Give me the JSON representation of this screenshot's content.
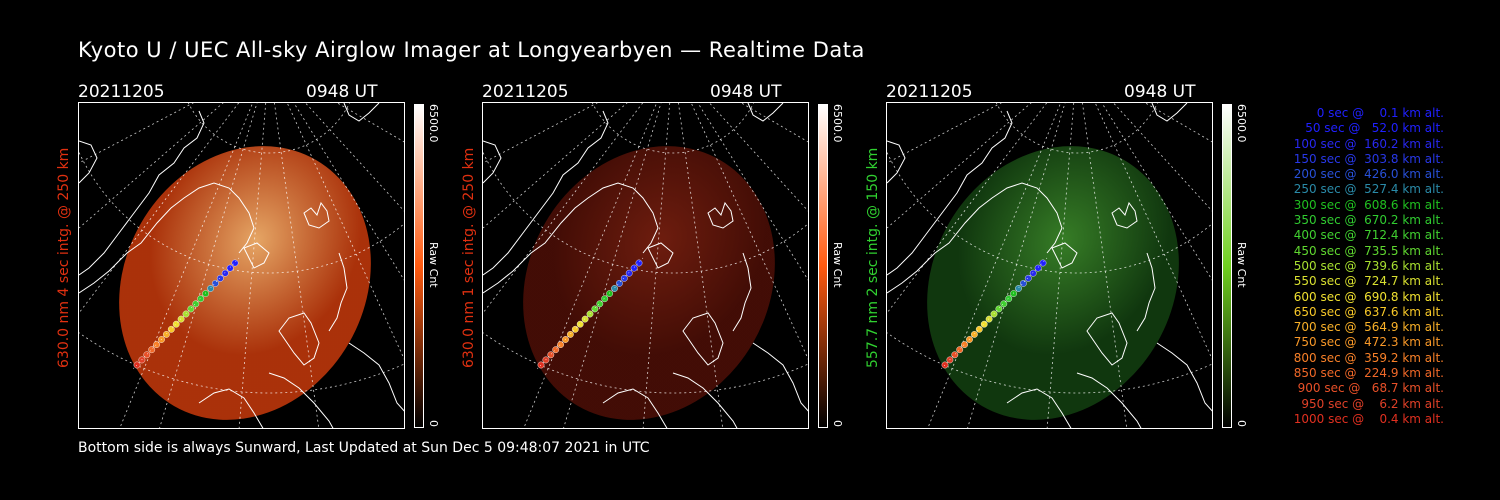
{
  "title": "Kyoto U / UEC All-sky Airglow Imager at Longyearbyen — Realtime Data",
  "footer": "Bottom side is always Sunward, Last Updated at Sun Dec  5 09:48:07 2021 in UTC",
  "panels": [
    {
      "date": "20211205",
      "time": "0948 UT",
      "ylabel": "630.0 nm 4 sec intg. @ 250 km",
      "label_color": "#e03010",
      "cbar_max": "6500.0",
      "cbar_min": "0",
      "cbar_unit": "Raw Cnt",
      "cbar_hi": "#ffffff",
      "cbar_mid": "#ff5a10",
      "cbar_lo": "#000000",
      "fill_color": "#c83a0c",
      "fill_opacity": 0.85,
      "glow": "#ffb870"
    },
    {
      "date": "20211205",
      "time": "0948 UT",
      "ylabel": "630.0 nm 1 sec intg. @ 250 km",
      "label_color": "#e03010",
      "cbar_max": "6500.0",
      "cbar_min": "0",
      "cbar_unit": "Raw Cnt",
      "cbar_hi": "#ffffff",
      "cbar_mid": "#ff5a10",
      "cbar_lo": "#000000",
      "fill_color": "#4a0e06",
      "fill_opacity": 0.9,
      "glow": "#7a2010"
    },
    {
      "date": "20211205",
      "time": "0948 UT",
      "ylabel": "557.7 nm 2 sec intg. @ 150 km",
      "label_color": "#30d030",
      "cbar_max": "6500.0",
      "cbar_min": "0",
      "cbar_unit": "Raw Cnt",
      "cbar_hi": "#ffffff",
      "cbar_mid": "#70d020",
      "cbar_lo": "#000000",
      "fill_color": "#123d10",
      "fill_opacity": 0.9,
      "glow": "#3c8a2a"
    }
  ],
  "legend": [
    {
      "text": "0 sec @    0.1 km alt.",
      "color": "#2020ff"
    },
    {
      "text": "50 sec @   52.0 km alt.",
      "color": "#2020ff"
    },
    {
      "text": "100 sec @  160.2 km alt.",
      "color": "#2828f0"
    },
    {
      "text": "150 sec @  303.8 km alt.",
      "color": "#2838e8"
    },
    {
      "text": "200 sec @  426.0 km alt.",
      "color": "#2850d8"
    },
    {
      "text": "250 sec @  527.4 km alt.",
      "color": "#2a8aa8"
    },
    {
      "text": "300 sec @  608.6 km alt.",
      "color": "#20c020"
    },
    {
      "text": "350 sec @  670.2 km alt.",
      "color": "#30cc30"
    },
    {
      "text": "400 sec @  712.4 km alt.",
      "color": "#40d030"
    },
    {
      "text": "450 sec @  735.5 km alt.",
      "color": "#60d830"
    },
    {
      "text": "500 sec @  739.6 km alt.",
      "color": "#a8e030"
    },
    {
      "text": "550 sec @  724.7 km alt.",
      "color": "#d8e030"
    },
    {
      "text": "600 sec @  690.8 km alt.",
      "color": "#f0e030"
    },
    {
      "text": "650 sec @  637.6 km alt.",
      "color": "#f8c828"
    },
    {
      "text": "700 sec @  564.9 km alt.",
      "color": "#f8b028"
    },
    {
      "text": "750 sec @  472.3 km alt.",
      "color": "#f89828"
    },
    {
      "text": "800 sec @  359.2 km alt.",
      "color": "#f88028"
    },
    {
      "text": "850 sec @  224.9 km alt.",
      "color": "#f06828"
    },
    {
      "text": "900 sec @   68.7 km alt.",
      "color": "#e85028"
    },
    {
      "text": "950 sec @    6.2 km alt.",
      "color": "#e04028"
    },
    {
      "text": "1000 sec @    0.4 km alt.",
      "color": "#e03020"
    }
  ]
}
